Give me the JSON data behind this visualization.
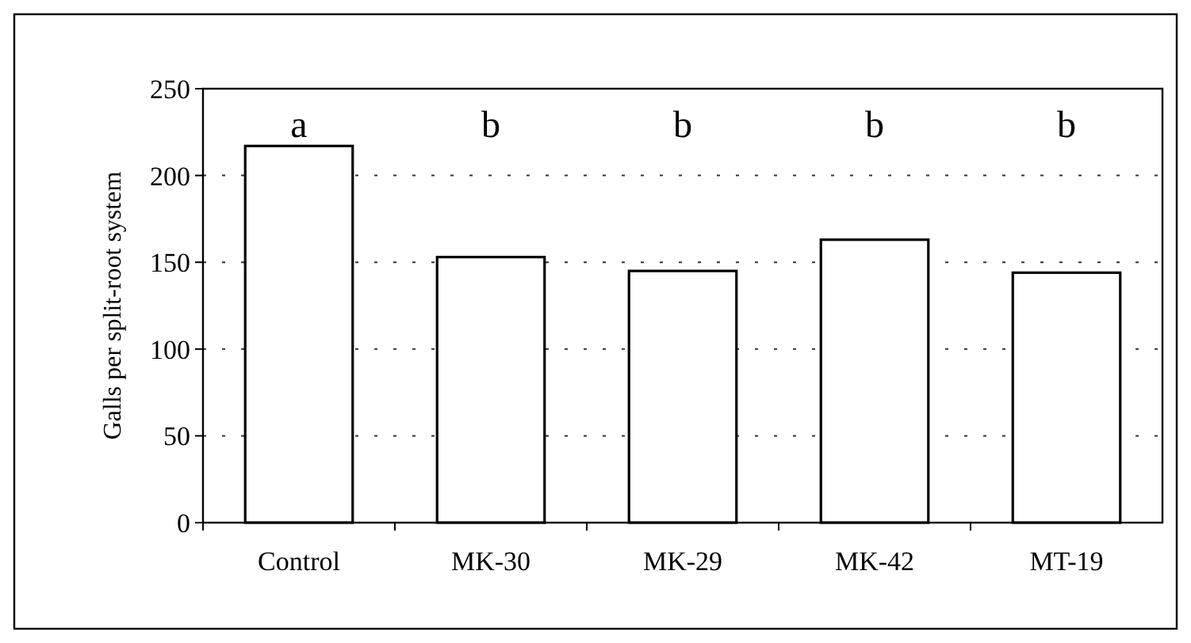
{
  "chart_data": {
    "type": "bar",
    "ylabel": "Galls per split-root system",
    "categories": [
      "Control",
      "MK-30",
      "MK-29",
      "MK-42",
      "MT-19"
    ],
    "values": [
      217,
      153,
      145,
      163,
      144
    ],
    "color": "#ffffff",
    "ylim": [
      0,
      250
    ],
    "yticks": [
      0,
      50,
      100,
      150,
      200,
      250
    ],
    "grid": "y",
    "annotations": [
      "a",
      "b",
      "b",
      "b",
      "b"
    ]
  }
}
